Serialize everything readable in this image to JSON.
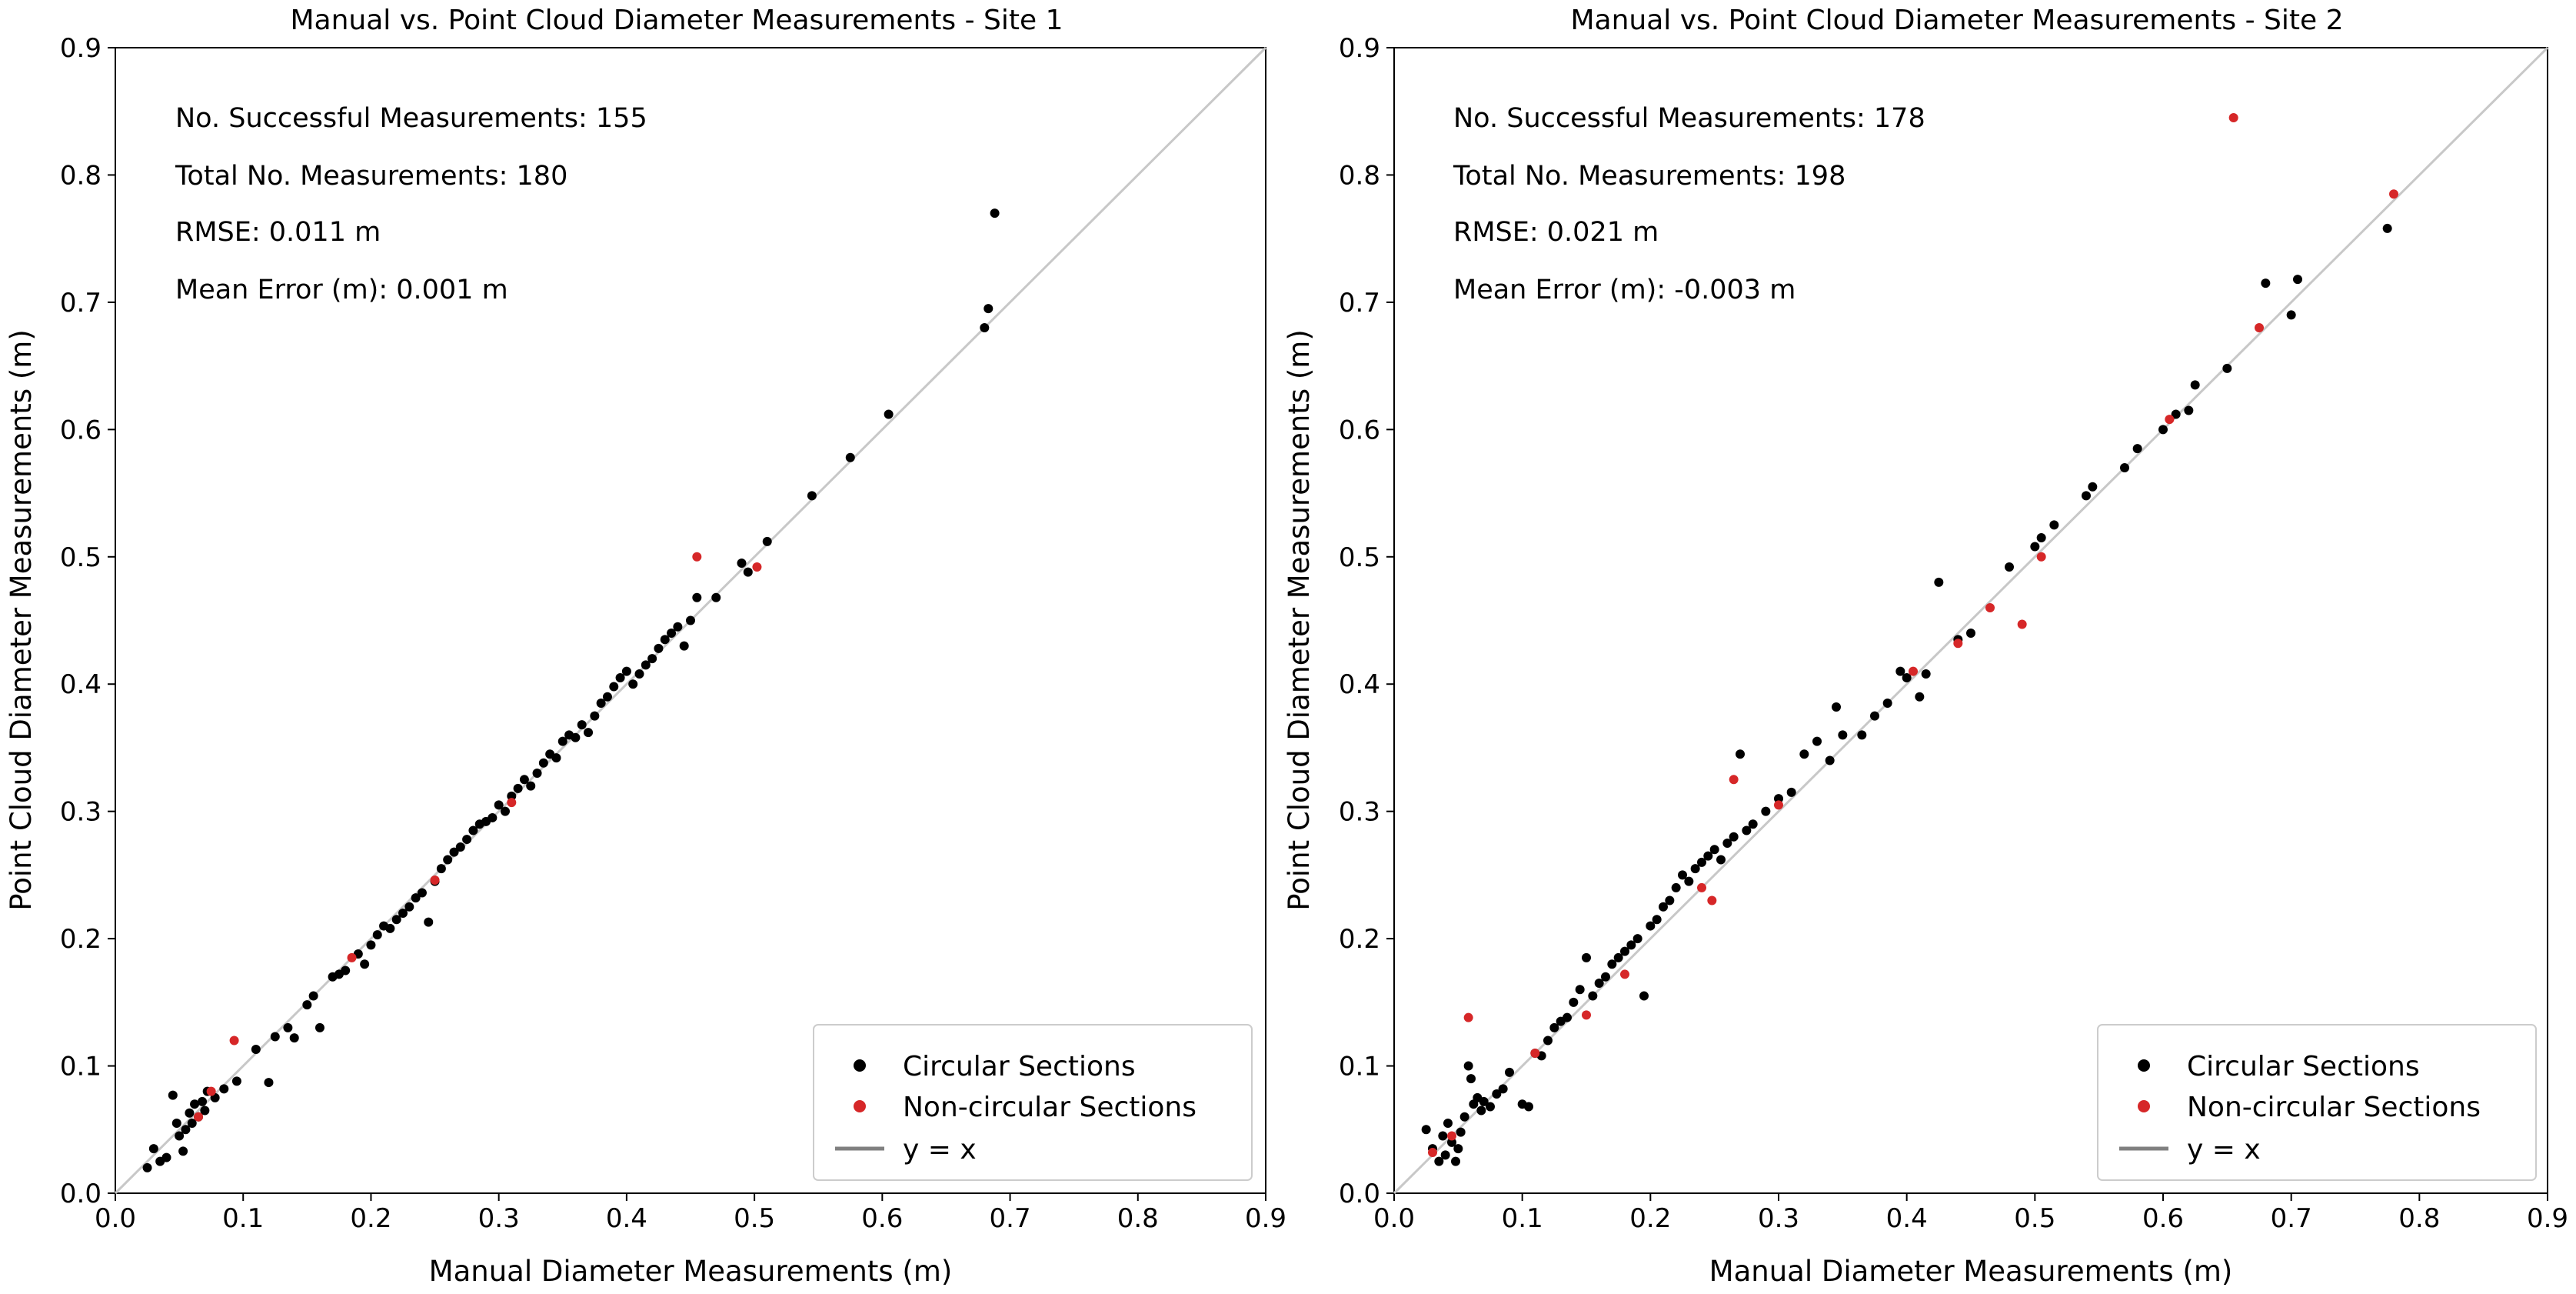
{
  "chart_data": [
    {
      "type": "scatter",
      "title": "Manual vs. Point Cloud Diameter Measurements - Site 1",
      "xlabel": "Manual Diameter Measurements (m)",
      "ylabel": "Point Cloud Diameter Measurements (m)",
      "xlim": [
        0.0,
        0.9
      ],
      "ylim": [
        0.0,
        0.9
      ],
      "xticks": [
        "0.0",
        "0.1",
        "0.2",
        "0.3",
        "0.4",
        "0.5",
        "0.6",
        "0.7",
        "0.8",
        "0.9"
      ],
      "yticks": [
        "0.0",
        "0.1",
        "0.2",
        "0.3",
        "0.4",
        "0.5",
        "0.6",
        "0.7",
        "0.8",
        "0.9"
      ],
      "grid": false,
      "legend_position": "bottom-right",
      "legend": [
        "Circular Sections",
        "Non-circular Sections",
        "y = x"
      ],
      "annotations": [
        "No. Successful Measurements: 155",
        "Total No. Measurements: 180",
        "RMSE: 0.011 m",
        "Mean Error (m): 0.001 m"
      ],
      "reference_line": [
        [
          0,
          0
        ],
        [
          0.9,
          0.9
        ]
      ],
      "series": [
        {
          "name": "Circular Sections",
          "color": "#000000",
          "points": [
            [
              0.025,
              0.02
            ],
            [
              0.03,
              0.035
            ],
            [
              0.035,
              0.025
            ],
            [
              0.04,
              0.028
            ],
            [
              0.045,
              0.077
            ],
            [
              0.048,
              0.055
            ],
            [
              0.05,
              0.045
            ],
            [
              0.053,
              0.033
            ],
            [
              0.055,
              0.05
            ],
            [
              0.058,
              0.063
            ],
            [
              0.06,
              0.055
            ],
            [
              0.062,
              0.07
            ],
            [
              0.065,
              0.06
            ],
            [
              0.068,
              0.072
            ],
            [
              0.07,
              0.065
            ],
            [
              0.072,
              0.08
            ],
            [
              0.078,
              0.075
            ],
            [
              0.085,
              0.082
            ],
            [
              0.095,
              0.088
            ],
            [
              0.11,
              0.113
            ],
            [
              0.12,
              0.087
            ],
            [
              0.125,
              0.123
            ],
            [
              0.135,
              0.13
            ],
            [
              0.14,
              0.122
            ],
            [
              0.15,
              0.148
            ],
            [
              0.155,
              0.155
            ],
            [
              0.16,
              0.13
            ],
            [
              0.17,
              0.17
            ],
            [
              0.175,
              0.172
            ],
            [
              0.18,
              0.175
            ],
            [
              0.19,
              0.188
            ],
            [
              0.195,
              0.18
            ],
            [
              0.2,
              0.195
            ],
            [
              0.205,
              0.203
            ],
            [
              0.21,
              0.21
            ],
            [
              0.215,
              0.208
            ],
            [
              0.22,
              0.215
            ],
            [
              0.225,
              0.22
            ],
            [
              0.23,
              0.225
            ],
            [
              0.235,
              0.232
            ],
            [
              0.24,
              0.236
            ],
            [
              0.245,
              0.213
            ],
            [
              0.25,
              0.245
            ],
            [
              0.255,
              0.255
            ],
            [
              0.26,
              0.262
            ],
            [
              0.265,
              0.268
            ],
            [
              0.27,
              0.272
            ],
            [
              0.275,
              0.278
            ],
            [
              0.28,
              0.285
            ],
            [
              0.285,
              0.29
            ],
            [
              0.29,
              0.292
            ],
            [
              0.295,
              0.295
            ],
            [
              0.3,
              0.305
            ],
            [
              0.305,
              0.3
            ],
            [
              0.31,
              0.312
            ],
            [
              0.315,
              0.318
            ],
            [
              0.32,
              0.325
            ],
            [
              0.325,
              0.32
            ],
            [
              0.33,
              0.33
            ],
            [
              0.335,
              0.338
            ],
            [
              0.34,
              0.345
            ],
            [
              0.345,
              0.342
            ],
            [
              0.35,
              0.355
            ],
            [
              0.355,
              0.36
            ],
            [
              0.36,
              0.358
            ],
            [
              0.365,
              0.368
            ],
            [
              0.37,
              0.362
            ],
            [
              0.375,
              0.375
            ],
            [
              0.38,
              0.385
            ],
            [
              0.385,
              0.39
            ],
            [
              0.39,
              0.398
            ],
            [
              0.395,
              0.405
            ],
            [
              0.4,
              0.41
            ],
            [
              0.405,
              0.4
            ],
            [
              0.41,
              0.408
            ],
            [
              0.415,
              0.415
            ],
            [
              0.42,
              0.42
            ],
            [
              0.425,
              0.428
            ],
            [
              0.43,
              0.435
            ],
            [
              0.435,
              0.44
            ],
            [
              0.44,
              0.445
            ],
            [
              0.445,
              0.43
            ],
            [
              0.45,
              0.45
            ],
            [
              0.455,
              0.468
            ],
            [
              0.47,
              0.468
            ],
            [
              0.49,
              0.495
            ],
            [
              0.495,
              0.488
            ],
            [
              0.51,
              0.512
            ],
            [
              0.545,
              0.548
            ],
            [
              0.575,
              0.578
            ],
            [
              0.605,
              0.612
            ],
            [
              0.68,
              0.68
            ],
            [
              0.683,
              0.695
            ],
            [
              0.688,
              0.77
            ]
          ]
        },
        {
          "name": "Non-circular Sections",
          "color": "#d62728",
          "points": [
            [
              0.065,
              0.06
            ],
            [
              0.075,
              0.08
            ],
            [
              0.093,
              0.12
            ],
            [
              0.185,
              0.185
            ],
            [
              0.25,
              0.246
            ],
            [
              0.31,
              0.307
            ],
            [
              0.455,
              0.5
            ],
            [
              0.502,
              0.492
            ]
          ]
        }
      ]
    },
    {
      "type": "scatter",
      "title": "Manual vs. Point Cloud Diameter Measurements - Site 2",
      "xlabel": "Manual Diameter Measurements (m)",
      "ylabel": "Point Cloud Diameter Measurements (m)",
      "xlim": [
        0.0,
        0.9
      ],
      "ylim": [
        0.0,
        0.9
      ],
      "xticks": [
        "0.0",
        "0.1",
        "0.2",
        "0.3",
        "0.4",
        "0.5",
        "0.6",
        "0.7",
        "0.8",
        "0.9"
      ],
      "yticks": [
        "0.0",
        "0.1",
        "0.2",
        "0.3",
        "0.4",
        "0.5",
        "0.6",
        "0.7",
        "0.8",
        "0.9"
      ],
      "grid": false,
      "legend_position": "bottom-right",
      "legend": [
        "Circular Sections",
        "Non-circular Sections",
        "y = x"
      ],
      "annotations": [
        "No. Successful Measurements: 178",
        "Total No. Measurements: 198",
        "RMSE: 0.021 m",
        "Mean Error (m): -0.003 m"
      ],
      "reference_line": [
        [
          0,
          0
        ],
        [
          0.9,
          0.9
        ]
      ],
      "series": [
        {
          "name": "Circular Sections",
          "color": "#000000",
          "points": [
            [
              0.025,
              0.05
            ],
            [
              0.03,
              0.035
            ],
            [
              0.035,
              0.025
            ],
            [
              0.038,
              0.045
            ],
            [
              0.04,
              0.03
            ],
            [
              0.042,
              0.055
            ],
            [
              0.045,
              0.04
            ],
            [
              0.048,
              0.025
            ],
            [
              0.05,
              0.035
            ],
            [
              0.052,
              0.048
            ],
            [
              0.055,
              0.06
            ],
            [
              0.058,
              0.1
            ],
            [
              0.06,
              0.09
            ],
            [
              0.062,
              0.07
            ],
            [
              0.065,
              0.075
            ],
            [
              0.068,
              0.065
            ],
            [
              0.07,
              0.072
            ],
            [
              0.075,
              0.068
            ],
            [
              0.08,
              0.078
            ],
            [
              0.085,
              0.082
            ],
            [
              0.09,
              0.095
            ],
            [
              0.1,
              0.07
            ],
            [
              0.105,
              0.068
            ],
            [
              0.11,
              0.11
            ],
            [
              0.115,
              0.108
            ],
            [
              0.12,
              0.12
            ],
            [
              0.125,
              0.13
            ],
            [
              0.13,
              0.135
            ],
            [
              0.135,
              0.138
            ],
            [
              0.14,
              0.15
            ],
            [
              0.145,
              0.16
            ],
            [
              0.15,
              0.185
            ],
            [
              0.155,
              0.155
            ],
            [
              0.16,
              0.165
            ],
            [
              0.165,
              0.17
            ],
            [
              0.17,
              0.18
            ],
            [
              0.175,
              0.185
            ],
            [
              0.18,
              0.19
            ],
            [
              0.185,
              0.195
            ],
            [
              0.19,
              0.2
            ],
            [
              0.195,
              0.155
            ],
            [
              0.2,
              0.21
            ],
            [
              0.205,
              0.215
            ],
            [
              0.21,
              0.225
            ],
            [
              0.215,
              0.23
            ],
            [
              0.22,
              0.24
            ],
            [
              0.225,
              0.25
            ],
            [
              0.23,
              0.245
            ],
            [
              0.235,
              0.255
            ],
            [
              0.24,
              0.26
            ],
            [
              0.245,
              0.265
            ],
            [
              0.25,
              0.27
            ],
            [
              0.255,
              0.262
            ],
            [
              0.26,
              0.275
            ],
            [
              0.265,
              0.28
            ],
            [
              0.27,
              0.345
            ],
            [
              0.275,
              0.285
            ],
            [
              0.28,
              0.29
            ],
            [
              0.29,
              0.3
            ],
            [
              0.3,
              0.31
            ],
            [
              0.31,
              0.315
            ],
            [
              0.32,
              0.345
            ],
            [
              0.33,
              0.355
            ],
            [
              0.34,
              0.34
            ],
            [
              0.345,
              0.382
            ],
            [
              0.35,
              0.36
            ],
            [
              0.365,
              0.36
            ],
            [
              0.375,
              0.375
            ],
            [
              0.385,
              0.385
            ],
            [
              0.395,
              0.41
            ],
            [
              0.4,
              0.405
            ],
            [
              0.41,
              0.39
            ],
            [
              0.415,
              0.408
            ],
            [
              0.425,
              0.48
            ],
            [
              0.44,
              0.435
            ],
            [
              0.45,
              0.44
            ],
            [
              0.48,
              0.492
            ],
            [
              0.5,
              0.508
            ],
            [
              0.505,
              0.515
            ],
            [
              0.515,
              0.525
            ],
            [
              0.54,
              0.548
            ],
            [
              0.545,
              0.555
            ],
            [
              0.57,
              0.57
            ],
            [
              0.58,
              0.585
            ],
            [
              0.6,
              0.6
            ],
            [
              0.61,
              0.612
            ],
            [
              0.62,
              0.615
            ],
            [
              0.625,
              0.635
            ],
            [
              0.65,
              0.648
            ],
            [
              0.68,
              0.715
            ],
            [
              0.7,
              0.69
            ],
            [
              0.705,
              0.718
            ],
            [
              0.775,
              0.758
            ]
          ]
        },
        {
          "name": "Non-circular Sections",
          "color": "#d62728",
          "points": [
            [
              0.03,
              0.032
            ],
            [
              0.045,
              0.045
            ],
            [
              0.058,
              0.138
            ],
            [
              0.11,
              0.11
            ],
            [
              0.15,
              0.14
            ],
            [
              0.18,
              0.172
            ],
            [
              0.24,
              0.24
            ],
            [
              0.248,
              0.23
            ],
            [
              0.265,
              0.325
            ],
            [
              0.3,
              0.305
            ],
            [
              0.405,
              0.41
            ],
            [
              0.44,
              0.432
            ],
            [
              0.465,
              0.46
            ],
            [
              0.49,
              0.447
            ],
            [
              0.505,
              0.5
            ],
            [
              0.605,
              0.608
            ],
            [
              0.655,
              0.845
            ],
            [
              0.675,
              0.68
            ],
            [
              0.78,
              0.785
            ]
          ]
        }
      ]
    }
  ]
}
